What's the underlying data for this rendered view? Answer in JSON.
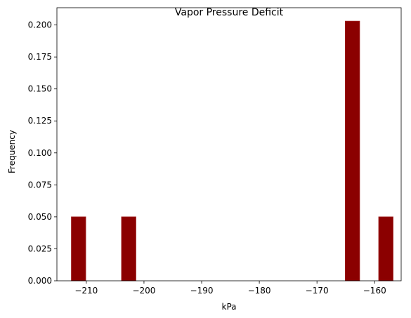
{
  "chart_data": {
    "type": "bar",
    "title": "Vapor Pressure Deficit",
    "xlabel": "kPa",
    "ylabel": "Frequency",
    "xlim": [
      -215.1,
      -155.4
    ],
    "ylim": [
      0,
      0.2135
    ],
    "grid": false,
    "bar_color": "#8b0000",
    "bar_edge_color": "#a02020",
    "bars": [
      {
        "x0": -212.6,
        "x1": -210.1,
        "value": 0.05
      },
      {
        "x0": -203.9,
        "x1": -201.4,
        "value": 0.05
      },
      {
        "x0": -165.1,
        "x1": -162.6,
        "value": 0.203
      },
      {
        "x0": -159.3,
        "x1": -156.8,
        "value": 0.05
      }
    ],
    "xticks": [
      {
        "value": -210,
        "label": "−210"
      },
      {
        "value": -200,
        "label": "−200"
      },
      {
        "value": -190,
        "label": "−190"
      },
      {
        "value": -180,
        "label": "−180"
      },
      {
        "value": -170,
        "label": "−170"
      },
      {
        "value": -160,
        "label": "−160"
      }
    ],
    "yticks": [
      {
        "value": 0.0,
        "label": "0.000"
      },
      {
        "value": 0.025,
        "label": "0.025"
      },
      {
        "value": 0.05,
        "label": "0.050"
      },
      {
        "value": 0.075,
        "label": "0.075"
      },
      {
        "value": 0.1,
        "label": "0.100"
      },
      {
        "value": 0.125,
        "label": "0.125"
      },
      {
        "value": 0.15,
        "label": "0.150"
      },
      {
        "value": 0.175,
        "label": "0.175"
      },
      {
        "value": 0.2,
        "label": "0.200"
      }
    ]
  }
}
